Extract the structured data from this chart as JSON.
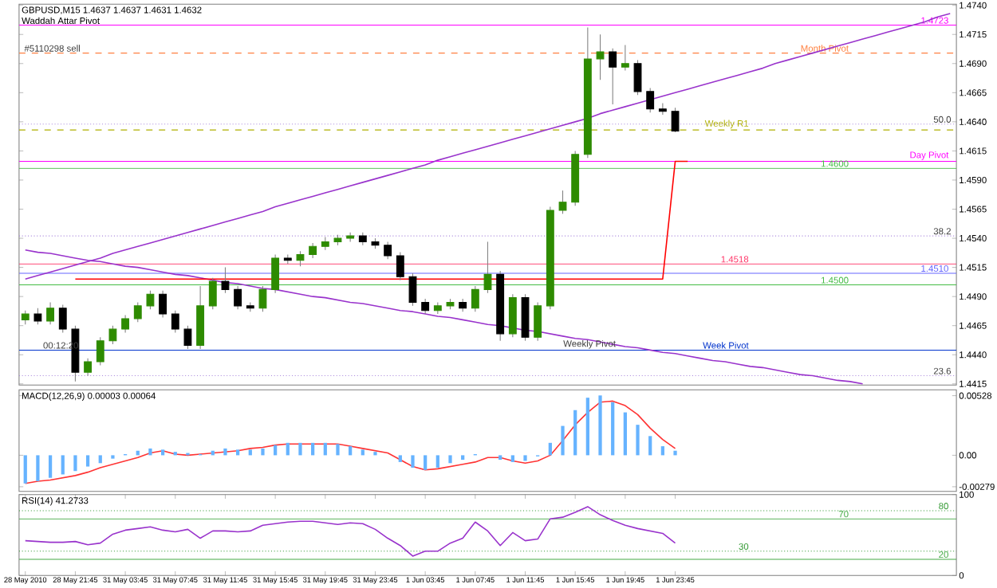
{
  "chart_data": [
    {
      "type": "candlestick",
      "title": "GBPUSD,M15 1.4637 1.4637 1.4631 1.4632",
      "subtitle": "Waddah Attar Pivot",
      "colors": [
        "#2e8b00",
        "#000000",
        "#2e8b00",
        "#000000",
        "#000000",
        "#2e8b00",
        "#2e8b00",
        "#2e8b00",
        "#2e8b00",
        "#2e8b00",
        "#2e8b00",
        "#000000",
        "#000000",
        "#000000",
        "#2e8b00",
        "#2e8b00",
        "#000000",
        "#000000",
        "#000000",
        "#2e8b00",
        "#2e8b00",
        "#000000",
        "#2e8b00",
        "#2e8b00",
        "#2e8b00",
        "#2e8b00",
        "#2e8b00",
        "#000000",
        "#000000",
        "#000000",
        "#000000",
        "#000000",
        "#000000",
        "#2e8b00",
        "#2e8b00",
        "#000000",
        "#2e8b00",
        "#2e8b00",
        "#000000",
        "#2e8b00",
        "#000000",
        "#2e8b00",
        "#2e8b00",
        "#2e8b00",
        "#2e8b00",
        "#2e8b00",
        "#2e8b00",
        "#000000",
        "#2e8b00",
        "#000000",
        "#000000",
        "#000000",
        "#000000",
        null,
        null,
        null,
        null,
        null,
        null,
        null,
        null,
        null,
        null,
        null,
        null,
        null,
        null,
        null,
        null,
        null,
        null,
        null,
        null,
        null,
        null
      ],
      "categories": [
        null,
        null,
        null,
        null,
        null,
        null,
        null,
        null,
        null,
        null,
        null,
        null,
        null,
        null,
        null,
        null,
        null,
        null,
        null,
        null,
        null,
        null,
        null,
        null,
        null,
        null,
        null,
        null,
        null,
        null,
        null,
        null,
        null,
        null,
        null,
        null,
        null,
        null,
        null,
        null,
        null,
        null,
        null,
        null,
        null,
        null,
        null,
        null,
        null,
        null,
        null,
        null,
        null,
        null,
        null,
        null,
        null,
        null,
        null,
        null,
        null,
        null,
        null,
        null,
        null,
        null,
        null,
        null,
        null,
        null,
        null,
        null,
        null,
        null,
        null
      ],
      "ohlc": [
        [
          1.447,
          1.4478,
          1.4466,
          1.4475
        ],
        [
          1.4475,
          1.448,
          1.4466,
          1.4469
        ],
        [
          1.4469,
          1.4485,
          1.4466,
          1.448
        ],
        [
          1.448,
          1.4483,
          1.4459,
          1.4462
        ],
        [
          1.4462,
          1.4465,
          1.4417,
          1.4425
        ],
        [
          1.4425,
          1.4437,
          1.4422,
          1.4434
        ],
        [
          1.4434,
          1.4455,
          1.4431,
          1.4452
        ],
        [
          1.4452,
          1.4465,
          1.4449,
          1.4462
        ],
        [
          1.4462,
          1.4474,
          1.4459,
          1.4471
        ],
        [
          1.4471,
          1.4485,
          1.4468,
          1.4482
        ],
        [
          1.4482,
          1.4495,
          1.4479,
          1.4492
        ],
        [
          1.4492,
          1.4495,
          1.4472,
          1.4475
        ],
        [
          1.4475,
          1.4478,
          1.4459,
          1.4462
        ],
        [
          1.4462,
          1.4465,
          1.4445,
          1.4448
        ],
        [
          1.4448,
          1.4499,
          1.4445,
          1.4482
        ],
        [
          1.4482,
          1.4506,
          1.4479,
          1.4503
        ],
        [
          1.4503,
          1.4515,
          1.4493,
          1.4496
        ],
        [
          1.4496,
          1.4499,
          1.4479,
          1.4482
        ],
        [
          1.4482,
          1.4485,
          1.4477,
          1.448
        ],
        [
          1.448,
          1.4499,
          1.4477,
          1.4496
        ],
        [
          1.4496,
          1.4526,
          1.4493,
          1.4523
        ],
        [
          1.4523,
          1.4526,
          1.4518,
          1.4521
        ],
        [
          1.4521,
          1.4529,
          1.4516,
          1.4526
        ],
        [
          1.4526,
          1.4536,
          1.4523,
          1.4533
        ],
        [
          1.4533,
          1.4541,
          1.453,
          1.4537
        ],
        [
          1.4537,
          1.4543,
          1.4534,
          1.454
        ],
        [
          1.454,
          1.4545,
          1.4537,
          1.4542
        ],
        [
          1.4542,
          1.4545,
          1.4534,
          1.4537
        ],
        [
          1.4537,
          1.454,
          1.4531,
          1.4534
        ],
        [
          1.4534,
          1.4537,
          1.4522,
          1.4525
        ],
        [
          1.4525,
          1.4528,
          1.4504,
          1.4507
        ],
        [
          1.4507,
          1.451,
          1.4482,
          1.4485
        ],
        [
          1.4485,
          1.4488,
          1.4475,
          1.4478
        ],
        [
          1.4478,
          1.4485,
          1.4475,
          1.4482
        ],
        [
          1.4482,
          1.4488,
          1.4479,
          1.4485
        ],
        [
          1.4485,
          1.4488,
          1.4477,
          1.448
        ],
        [
          1.448,
          1.4499,
          1.4477,
          1.4496
        ],
        [
          1.4496,
          1.4537,
          1.4493,
          1.4509
        ],
        [
          1.4509,
          1.4512,
          1.4452,
          1.4458
        ],
        [
          1.4458,
          1.4492,
          1.4455,
          1.4489
        ],
        [
          1.4489,
          1.4492,
          1.4452,
          1.4455
        ],
        [
          1.4455,
          1.4485,
          1.4452,
          1.4482
        ],
        [
          1.4482,
          1.4567,
          1.4479,
          1.4564
        ],
        [
          1.4564,
          1.4581,
          1.4561,
          1.4571
        ],
        [
          1.4571,
          1.4615,
          1.4568,
          1.4612
        ],
        [
          1.4612,
          1.4721,
          1.4609,
          1.4694
        ],
        [
          1.4694,
          1.4715,
          1.4676,
          1.47
        ],
        [
          1.47,
          1.4703,
          1.4655,
          1.4687
        ],
        [
          1.4687,
          1.4706,
          1.4684,
          1.469
        ],
        [
          1.469,
          1.4693,
          1.4663,
          1.4666
        ],
        [
          1.4666,
          1.4669,
          1.4648,
          1.4651
        ],
        [
          1.4651,
          1.4656,
          1.4646,
          1.4649
        ],
        [
          1.4649,
          1.4652,
          1.4631,
          1.4632
        ],
        null,
        null,
        null,
        null,
        null,
        null,
        null,
        null,
        null,
        null,
        null,
        null,
        null,
        null,
        null,
        null,
        null,
        null,
        null,
        null,
        null,
        null
      ],
      "series": [
        {
          "type": "line",
          "color": "#9933cc",
          "values": [
            1.4505,
            1.4508,
            1.4511,
            1.4514,
            1.4517,
            1.452,
            1.4523,
            1.4527,
            1.453,
            1.4533,
            1.4536,
            1.4539,
            1.4542,
            1.4545,
            1.4548,
            1.4551,
            1.4554,
            1.4557,
            1.456,
            1.4563,
            1.4567,
            1.457,
            1.4573,
            1.4576,
            1.4579,
            1.4582,
            1.4585,
            1.4588,
            1.4591,
            1.4594,
            1.4597,
            1.46,
            1.4603,
            1.4607,
            1.461,
            1.4613,
            1.4616,
            1.4619,
            1.4622,
            1.4625,
            1.4628,
            1.4631,
            1.4634,
            1.4637,
            1.464,
            1.4643,
            1.4647,
            1.465,
            1.4653,
            1.4656,
            1.4659,
            1.4662,
            1.4665,
            1.4668,
            1.4671,
            1.4674,
            1.4677,
            1.468,
            1.4683,
            1.4686,
            1.469,
            1.4693,
            1.4696,
            1.4699,
            1.4702,
            1.4705,
            1.4708,
            1.4711,
            1.4714,
            1.4717,
            1.472,
            1.4723,
            1.4726,
            1.473,
            1.4733
          ]
        },
        {
          "type": "line",
          "color": "#9933cc",
          "values": [
            1.453,
            1.4528,
            1.4527,
            1.4525,
            1.4523,
            1.4521,
            1.452,
            1.4518,
            1.4516,
            1.4515,
            1.4513,
            1.4511,
            1.4509,
            1.4508,
            1.4506,
            1.4504,
            1.4502,
            1.4501,
            1.4499,
            1.4497,
            1.4496,
            1.4494,
            1.4492,
            1.449,
            1.4489,
            1.4487,
            1.4485,
            1.4484,
            1.4482,
            1.448,
            1.4478,
            1.4477,
            1.4475,
            1.4473,
            1.4472,
            1.447,
            1.4468,
            1.4466,
            1.4465,
            1.4463,
            1.4461,
            1.446,
            1.4458,
            1.4456,
            1.4454,
            1.4453,
            1.4451,
            1.4449,
            1.4447,
            1.4446,
            1.4444,
            1.4442,
            1.4441,
            1.4439,
            1.4437,
            1.4435,
            1.4434,
            1.4432,
            1.443,
            1.4429,
            1.4427,
            1.4425,
            1.4423,
            1.4422,
            1.442,
            1.4418,
            1.4417,
            1.4415,
            null,
            null,
            null,
            null,
            null,
            null,
            null
          ]
        },
        {
          "type": "line",
          "color": "#ff0000",
          "values": [
            null,
            null,
            null,
            null,
            1.4505,
            1.4505,
            1.4505,
            1.4505,
            1.4505,
            1.4505,
            1.4505,
            1.4505,
            1.4505,
            1.4505,
            1.4505,
            1.4505,
            1.4505,
            1.4505,
            1.4505,
            1.4505,
            1.4505,
            1.4505,
            1.4505,
            1.4505,
            1.4505,
            1.4505,
            1.4505,
            1.4505,
            1.4505,
            1.4505,
            1.4505,
            1.4505,
            1.4505,
            1.4505,
            1.4505,
            1.4505,
            1.4505,
            1.4505,
            1.4505,
            1.4505,
            1.4505,
            1.4505,
            1.4505,
            1.4505,
            1.4505,
            1.4505,
            1.4505,
            1.4505,
            1.4505,
            1.4505,
            1.4505,
            1.4505,
            1.4606,
            1.4606,
            null,
            null,
            null,
            null,
            null,
            null,
            null,
            null,
            null,
            null,
            null,
            null,
            null,
            null,
            null,
            null,
            null,
            null,
            null,
            null,
            null
          ]
        }
      ],
      "ylim": [
        1.4414,
        1.4741
      ],
      "yticks": [
        {
          "value": 1.474,
          "label": "1.4740"
        },
        {
          "value": 1.4715,
          "label": "1.4715"
        },
        {
          "value": 1.469,
          "label": "1.4690"
        },
        {
          "value": 1.4665,
          "label": "1.4665"
        },
        {
          "value": 1.464,
          "label": "1.4640"
        },
        {
          "value": 1.4615,
          "label": "1.4615"
        },
        {
          "value": 1.459,
          "label": "1.4590"
        },
        {
          "value": 1.4565,
          "label": "1.4565"
        },
        {
          "value": 1.454,
          "label": "1.4540"
        },
        {
          "value": 1.4515,
          "label": "1.4515"
        },
        {
          "value": 1.449,
          "label": "1.4490"
        },
        {
          "value": 1.4465,
          "label": "1.4465"
        },
        {
          "value": 1.444,
          "label": "1.4440"
        },
        {
          "value": 1.4415,
          "label": "1.4415"
        }
      ],
      "tick_labels": "y",
      "ref_lines": [
        {
          "axis": "y",
          "value": 1.4723,
          "label": "1.4723",
          "color": "#ff00ff",
          "line_style": "solid"
        },
        {
          "axis": "y",
          "value": 1.4699,
          "label": "Month Pivot",
          "color": "#ff8040",
          "line_style": "dashed"
        },
        {
          "axis": "y",
          "value": 1.4633,
          "label": "Weekly R1",
          "color": "#b0b000",
          "line_style": "dashed"
        },
        {
          "axis": "y",
          "value": 1.4606,
          "label": "Day Pivot",
          "color": "#ff00ff",
          "line_style": "solid"
        },
        {
          "axis": "y",
          "value": 1.46,
          "label": "1.4600",
          "color": "#44bb44",
          "line_style": "solid"
        },
        {
          "axis": "y",
          "value": 1.4518,
          "label": "1.4518",
          "color": "#ff3366",
          "line_style": "solid"
        },
        {
          "axis": "y",
          "value": 1.451,
          "label": "1.4510",
          "color": "#6666ff",
          "line_style": "solid"
        },
        {
          "axis": "y",
          "value": 1.45,
          "label": "1.4500",
          "color": "#44bb44",
          "line_style": "solid"
        },
        {
          "axis": "y",
          "value": 1.4444,
          "label": "Week Pivot",
          "color": "#0033cc",
          "line_style": "solid"
        },
        {
          "axis": "y",
          "value": 1.4638,
          "color": "#aa88dd",
          "line_style": "dotted"
        },
        {
          "axis": "y",
          "value": 1.4542,
          "color": "#aa88dd",
          "line_style": "dotted"
        },
        {
          "axis": "y",
          "value": 1.4422,
          "color": "#aa88dd",
          "line_style": "dotted"
        }
      ],
      "annotations": [
        {
          "text": "Weekly Pivot",
          "y": 1.4444
        },
        {
          "text": "#5110298 sell",
          "y": 1.4699
        },
        {
          "text": "00:12:20",
          "y": 1.4444
        },
        {
          "text": "50.0",
          "y": 1.4638
        },
        {
          "text": "38.2",
          "y": 1.4542
        },
        {
          "text": "23.6",
          "y": 1.4422
        }
      ]
    },
    {
      "type": "bar",
      "title": "MACD(12,26,9) 0.00003 0.00064",
      "categories": [
        null,
        null,
        null,
        null,
        null,
        null,
        null,
        null,
        null,
        null,
        null,
        null,
        null,
        null,
        null,
        null,
        null,
        null,
        null,
        null,
        null,
        null,
        null,
        null,
        null,
        null,
        null,
        null,
        null,
        null,
        null,
        null,
        null,
        null,
        null,
        null,
        null,
        null,
        null,
        null,
        null,
        null,
        null,
        null,
        null,
        null,
        null,
        null,
        null,
        null,
        null,
        null,
        null,
        null,
        null,
        null,
        null,
        null,
        null,
        null,
        null,
        null,
        null,
        null,
        null,
        null,
        null,
        null,
        null,
        null,
        null,
        null,
        null,
        null,
        null
      ],
      "series": [
        {
          "type": "bar",
          "color": "#66b3ff",
          "values": [
            -0.0025,
            -0.0023,
            -0.002,
            -0.0017,
            -0.0014,
            -0.001,
            -0.0007,
            -0.0003,
            0.0001,
            0.0004,
            0.0006,
            0.0005,
            0.0003,
            0.0002,
            0.0001,
            0.0004,
            0.0006,
            0.0005,
            0.0005,
            0.0006,
            0.0009,
            0.0011,
            0.0011,
            0.0011,
            0.0011,
            0.001,
            0.0008,
            0.0005,
            0.0003,
            0.0,
            -0.0006,
            -0.0011,
            -0.0013,
            -0.0011,
            -0.0007,
            -0.0004,
            0.0001,
            0.0,
            -0.0004,
            -0.0006,
            -0.0005,
            -0.0001,
            0.0011,
            0.0026,
            0.004,
            0.0051,
            0.0053,
            0.0047,
            0.0038,
            0.0027,
            0.0017,
            0.0008,
            0.0004,
            null,
            null,
            null,
            null,
            null,
            null,
            null,
            null,
            null,
            null,
            null,
            null,
            null,
            null,
            null,
            null,
            null,
            null,
            null,
            null,
            null,
            null
          ]
        },
        {
          "type": "line",
          "color": "#ff3333",
          "values": [
            -0.0025,
            -0.0023,
            -0.0022,
            -0.002,
            -0.0018,
            -0.0015,
            -0.0011,
            -0.0008,
            -0.0005,
            -0.0002,
            0.0002,
            0.0004,
            0.0001,
            0.0,
            0.0001,
            0.0002,
            0.0003,
            0.0004,
            0.0006,
            0.0007,
            0.0009,
            0.001,
            0.001,
            0.001,
            0.001,
            0.001,
            0.0008,
            0.0006,
            0.0004,
            0.0002,
            -0.0004,
            -0.001,
            -0.0013,
            -0.0012,
            -0.001,
            -0.0008,
            -0.0006,
            -0.0002,
            -0.0002,
            -0.0005,
            -0.0007,
            -0.0005,
            0.0,
            0.0013,
            0.0027,
            0.0038,
            0.0047,
            0.0048,
            0.0044,
            0.0036,
            0.0024,
            0.0014,
            0.0006,
            null,
            null,
            null,
            null,
            null,
            null,
            null,
            null,
            null,
            null,
            null,
            null,
            null,
            null,
            null,
            null,
            null,
            null,
            null,
            null,
            null,
            null
          ]
        }
      ],
      "ylim": [
        -0.0032,
        0.0058
      ],
      "yticks": [
        {
          "value": 0.00528,
          "label": "0.00528"
        },
        {
          "value": 0,
          "label": "0.00"
        },
        {
          "value": -0.00279,
          "label": "-0.00279"
        }
      ],
      "tick_labels": "y"
    },
    {
      "type": "line",
      "title": "RSI(14) 41.2733",
      "color": "#9933cc",
      "categories": [
        "28 May 2010",
        null,
        null,
        null,
        "28 May 21:45",
        null,
        null,
        null,
        "31 May 03:45",
        null,
        null,
        null,
        "31 May 07:45",
        null,
        null,
        null,
        "31 May 11:45",
        null,
        null,
        null,
        "31 May 15:45",
        null,
        null,
        null,
        "31 May 19:45",
        null,
        null,
        null,
        "31 May 23:45",
        null,
        null,
        null,
        "1 Jun 03:45",
        null,
        null,
        null,
        "1 Jun 07:45",
        null,
        null,
        null,
        "1 Jun 11:45",
        null,
        null,
        null,
        "1 Jun 15:45",
        null,
        null,
        null,
        "1 Jun 19:45",
        null,
        null,
        null,
        "1 Jun 23:45",
        null,
        null,
        null,
        null,
        null,
        null,
        null,
        null,
        null,
        null,
        null,
        null,
        null,
        null,
        null,
        null,
        null,
        null,
        null,
        null,
        null,
        null
      ],
      "values": [
        43,
        42,
        41,
        41,
        42,
        38,
        40,
        51,
        56,
        58,
        60,
        56,
        54,
        57,
        46,
        55,
        55,
        54,
        55,
        62,
        64,
        66,
        67,
        67,
        65,
        63,
        65,
        64,
        57,
        46,
        37,
        24,
        30,
        30,
        40,
        46,
        66,
        55,
        37,
        53,
        43,
        45,
        70,
        72,
        78,
        85,
        75,
        68,
        62,
        58,
        55,
        52,
        40,
        null,
        null,
        null,
        null,
        null,
        null,
        null,
        null,
        null,
        null,
        null,
        null,
        null,
        null,
        null,
        null,
        null,
        null,
        null,
        null,
        null,
        null
      ],
      "ylim": [
        0,
        100
      ],
      "yticks": [
        0,
        100
      ],
      "ref_lines": [
        {
          "axis": "y",
          "value": 80,
          "label": "80",
          "color": "#339933",
          "line_style": "dotted"
        },
        {
          "axis": "y",
          "value": 70,
          "label": "70",
          "color": "#44aa44",
          "line_style": "solid"
        },
        {
          "axis": "y",
          "value": 30,
          "label": "30",
          "color": "#339933",
          "line_style": "dotted"
        },
        {
          "axis": "y",
          "value": 20,
          "label": "20",
          "color": "#44aa44",
          "line_style": "solid"
        }
      ]
    }
  ]
}
